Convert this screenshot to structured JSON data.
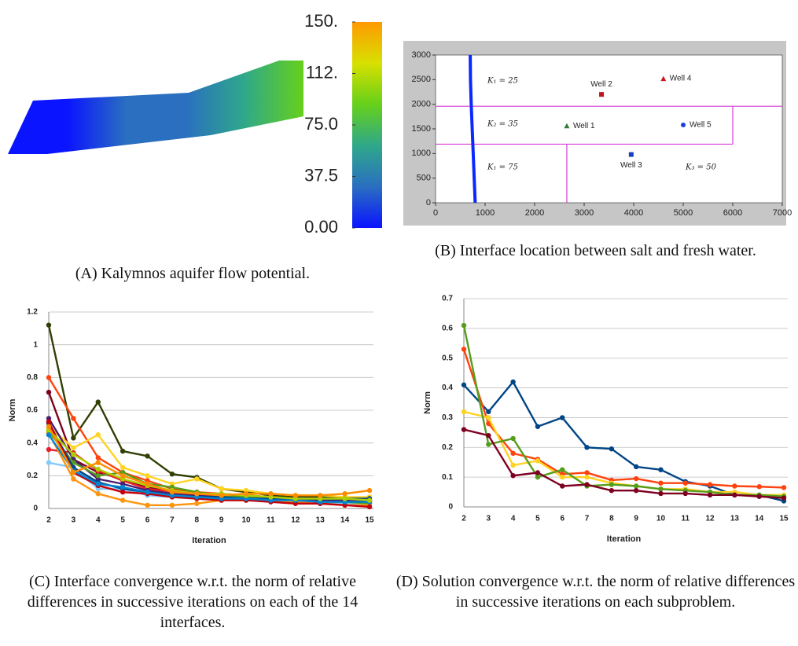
{
  "chart_data": [
    {
      "type": "surface",
      "caption": "(A) Kalymnos aquifer flow potential.",
      "clim": [
        0,
        150
      ],
      "cticks": [
        {
          "value": 0,
          "label": "0.00"
        },
        37.5,
        {
          "value": 75,
          "label": "75.0"
        },
        {
          "value": 112.5,
          "label": "112."
        },
        {
          "value": 150,
          "label": "150."
        }
      ],
      "colormap": [
        "#0a14ff",
        "#2a6fc0",
        "#2fa88a",
        "#66d01a",
        "#d8e000",
        "#ff9a00"
      ]
    },
    {
      "type": "scatter",
      "caption": "(B) Interface location between salt and fresh water.",
      "xlim": [
        0,
        7000
      ],
      "ylim": [
        0,
        3000
      ],
      "xticks": [
        0,
        1000,
        2000,
        3000,
        4000,
        5000,
        6000,
        7000
      ],
      "yticks": [
        0,
        500,
        1000,
        1500,
        2000,
        2500,
        3000
      ],
      "points": [
        {
          "label": "Well 1",
          "x": 2650,
          "y": 1560,
          "color": "#2e7d32",
          "marker": "triangle"
        },
        {
          "label": "Well 2",
          "x": 3350,
          "y": 2200,
          "color": "#c0141e",
          "marker": "square"
        },
        {
          "label": "Well 3",
          "x": 3950,
          "y": 980,
          "color": "#1a3fc0",
          "marker": "square"
        },
        {
          "label": "Well 4",
          "x": 4600,
          "y": 2520,
          "color": "#d0141e",
          "marker": "triangle"
        },
        {
          "label": "Well 5",
          "x": 5000,
          "y": 1580,
          "color": "#1a3fe0",
          "marker": "circle"
        }
      ],
      "interface": {
        "x": [
          800,
          780,
          760,
          740,
          720,
          705,
          700
        ],
        "y": [
          0,
          500,
          1000,
          1500,
          2000,
          2500,
          3000
        ],
        "color": "#0a28ff"
      },
      "boundaries": [
        {
          "x": [
            0,
            7000
          ],
          "y": [
            1960,
            1960
          ]
        },
        {
          "x": [
            0,
            6000
          ],
          "y": [
            1190,
            1190
          ]
        },
        {
          "x": [
            6000,
            6000
          ],
          "y": [
            1190,
            1960
          ]
        },
        {
          "x": [
            2650,
            2650
          ],
          "y": [
            0,
            1190
          ]
        }
      ],
      "boundary_color": "#d63cd6",
      "annotations": [
        "K₁ = 25",
        "K₂ = 35",
        "K₁ = 75",
        "K₃ = 50"
      ]
    },
    {
      "type": "line",
      "caption": "(C) Interface convergence w.r.t. the norm of relative differences in successive iterations on each of the 14 interfaces.",
      "xlabel": "Iteration",
      "ylabel": "Norm",
      "grid": true,
      "categories": [
        "2",
        "3",
        "4",
        "5",
        "6",
        "7",
        "8",
        "9",
        "10",
        "11",
        "12",
        "13",
        "14",
        "15"
      ],
      "ylim": [
        0,
        1.2
      ],
      "yticks": [
        0,
        0.2,
        0.4,
        0.6,
        0.8,
        1,
        1.2
      ],
      "series": [
        {
          "color": "#314004",
          "values": [
            1.12,
            0.43,
            0.65,
            0.35,
            0.32,
            0.21,
            0.19,
            0.12,
            0.1,
            0.08,
            0.07,
            0.07,
            0.06,
            0.05
          ]
        },
        {
          "color": "#ff420e",
          "values": [
            0.8,
            0.55,
            0.31,
            0.22,
            0.17,
            0.12,
            0.1,
            0.09,
            0.08,
            0.07,
            0.06,
            0.06,
            0.05,
            0.04
          ]
        },
        {
          "color": "#7e0021",
          "values": [
            0.71,
            0.3,
            0.22,
            0.18,
            0.13,
            0.1,
            0.09,
            0.07,
            0.07,
            0.06,
            0.05,
            0.05,
            0.04,
            0.04
          ]
        },
        {
          "color": "#ffd320",
          "values": [
            0.5,
            0.37,
            0.45,
            0.25,
            0.2,
            0.15,
            0.18,
            0.12,
            0.11,
            0.09,
            0.08,
            0.08,
            0.07,
            0.07
          ]
        },
        {
          "color": "#e8202a",
          "values": [
            0.36,
            0.34,
            0.23,
            0.17,
            0.12,
            0.1,
            0.08,
            0.07,
            0.06,
            0.05,
            0.04,
            0.04,
            0.03,
            0.03
          ]
        },
        {
          "color": "#83caff",
          "values": [
            0.28,
            0.25,
            0.12,
            0.12,
            0.08,
            0.07,
            0.06,
            0.06,
            0.05,
            0.05,
            0.04,
            0.04,
            0.03,
            0.03
          ]
        },
        {
          "color": "#4b1f6f",
          "values": [
            0.55,
            0.3,
            0.18,
            0.15,
            0.11,
            0.09,
            0.08,
            0.07,
            0.06,
            0.06,
            0.05,
            0.05,
            0.05,
            0.04
          ]
        },
        {
          "color": "#579d1c",
          "values": [
            0.47,
            0.28,
            0.2,
            0.22,
            0.15,
            0.13,
            0.1,
            0.08,
            0.07,
            0.06,
            0.05,
            0.04,
            0.04,
            0.03
          ]
        },
        {
          "color": "#ff950e",
          "values": [
            0.46,
            0.18,
            0.09,
            0.05,
            0.02,
            0.02,
            0.03,
            0.05,
            0.05,
            0.05,
            0.04,
            0.03,
            0.02,
            0.02
          ]
        },
        {
          "color": "#004586",
          "values": [
            0.52,
            0.25,
            0.16,
            0.12,
            0.1,
            0.08,
            0.07,
            0.07,
            0.06,
            0.06,
            0.06,
            0.06,
            0.06,
            0.06
          ]
        },
        {
          "color": "#c5000b",
          "values": [
            0.53,
            0.22,
            0.14,
            0.1,
            0.09,
            0.07,
            0.06,
            0.05,
            0.05,
            0.04,
            0.03,
            0.03,
            0.02,
            0.01
          ]
        },
        {
          "color": "#0084d1",
          "values": [
            0.45,
            0.23,
            0.15,
            0.13,
            0.1,
            0.08,
            0.07,
            0.06,
            0.06,
            0.05,
            0.05,
            0.04,
            0.04,
            0.04
          ]
        },
        {
          "color": "#aecf00",
          "values": [
            0.48,
            0.33,
            0.24,
            0.18,
            0.14,
            0.11,
            0.09,
            0.09,
            0.08,
            0.07,
            0.06,
            0.06,
            0.06,
            0.05
          ]
        },
        {
          "color": "#ff8c00",
          "values": [
            0.5,
            0.22,
            0.28,
            0.2,
            0.15,
            0.1,
            0.09,
            0.08,
            0.09,
            0.09,
            0.08,
            0.08,
            0.09,
            0.11
          ]
        }
      ]
    },
    {
      "type": "line",
      "caption": "(D) Solution convergence w.r.t. the norm of relative differences in successive iterations on each subproblem.",
      "xlabel": "Iteration",
      "ylabel": "Norm",
      "grid": true,
      "categories": [
        "2",
        "3",
        "4",
        "5",
        "6",
        "7",
        "8",
        "9",
        "10",
        "11",
        "12",
        "13",
        "14",
        "15"
      ],
      "ylim": [
        0,
        0.7
      ],
      "yticks": [
        0,
        0.1,
        0.2,
        0.3,
        0.4,
        0.5,
        0.6,
        0.7
      ],
      "series": [
        {
          "color": "#004586",
          "values": [
            0.41,
            0.32,
            0.42,
            0.27,
            0.3,
            0.2,
            0.195,
            0.135,
            0.125,
            0.085,
            0.07,
            0.04,
            0.04,
            0.02
          ]
        },
        {
          "color": "#ff420e",
          "values": [
            0.53,
            0.28,
            0.18,
            0.16,
            0.11,
            0.115,
            0.09,
            0.095,
            0.08,
            0.08,
            0.075,
            0.07,
            0.068,
            0.065
          ]
        },
        {
          "color": "#ffd320",
          "values": [
            0.32,
            0.3,
            0.14,
            0.155,
            0.1,
            0.1,
            0.08,
            0.07,
            0.06,
            0.06,
            0.05,
            0.05,
            0.04,
            0.04
          ]
        },
        {
          "color": "#579d1c",
          "values": [
            0.61,
            0.21,
            0.23,
            0.1,
            0.125,
            0.07,
            0.075,
            0.07,
            0.06,
            0.055,
            0.05,
            0.04,
            0.04,
            0.035
          ]
        },
        {
          "color": "#7e0021",
          "values": [
            0.26,
            0.24,
            0.105,
            0.115,
            0.07,
            0.075,
            0.055,
            0.055,
            0.045,
            0.045,
            0.04,
            0.04,
            0.035,
            0.03
          ]
        }
      ]
    }
  ]
}
